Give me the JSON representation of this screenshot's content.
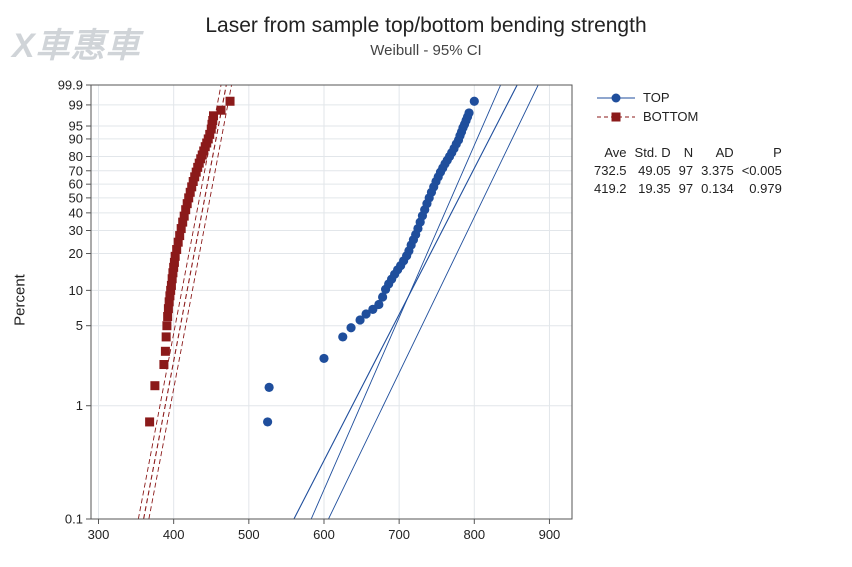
{
  "watermark": "X車惠車",
  "chart_data": {
    "type": "scatter",
    "title": "Laser from sample top/bottom bending strength",
    "subtitle": "Weibull - 95% CI",
    "xlabel": "",
    "ylabel": "Percent",
    "xlim": [
      290,
      930
    ],
    "xticks": [
      300,
      400,
      500,
      600,
      700,
      800,
      900
    ],
    "yticks": [
      0.1,
      1,
      5,
      10,
      20,
      30,
      40,
      50,
      60,
      70,
      80,
      90,
      95,
      99,
      99.9
    ],
    "ytick_labels": [
      "0.1",
      "1",
      "5",
      "10",
      "20",
      "30",
      "40",
      "50",
      "60",
      "70",
      "80",
      "90",
      "95",
      "99",
      "99.9"
    ],
    "grid": true,
    "legend_position": "right",
    "series": [
      {
        "name": "TOP",
        "color": "#1f4e9c",
        "marker": "circle",
        "fit_line": [
          [
            560,
            0.1
          ],
          [
            857,
            99.9
          ]
        ],
        "ci_lower": [
          [
            583,
            0.1
          ],
          [
            835,
            99.9
          ]
        ],
        "ci_upper": [
          [
            606,
            0.1
          ],
          [
            885,
            99.9
          ]
        ],
        "points": [
          [
            525,
            0.72
          ],
          [
            527,
            1.45
          ],
          [
            600,
            2.6
          ],
          [
            625,
            4.0
          ],
          [
            636,
            4.8
          ],
          [
            648,
            5.6
          ],
          [
            656,
            6.3
          ],
          [
            665,
            6.9
          ],
          [
            673,
            7.6
          ],
          [
            678,
            8.8
          ],
          [
            682,
            10.2
          ],
          [
            686,
            11.3
          ],
          [
            690,
            12.4
          ],
          [
            694,
            13.6
          ],
          [
            698,
            14.8
          ],
          [
            702,
            16.0
          ],
          [
            706,
            17.5
          ],
          [
            710,
            19.2
          ],
          [
            713,
            21.0
          ],
          [
            716,
            23.3
          ],
          [
            719,
            25.6
          ],
          [
            722,
            28.0
          ],
          [
            725,
            31.0
          ],
          [
            728,
            34.5
          ],
          [
            731,
            38.2
          ],
          [
            734,
            42.0
          ],
          [
            737,
            46.0
          ],
          [
            740,
            50.0
          ],
          [
            743,
            54.0
          ],
          [
            746,
            58.0
          ],
          [
            749,
            62.0
          ],
          [
            752,
            65.5
          ],
          [
            755,
            69.0
          ],
          [
            758,
            72.0
          ],
          [
            761,
            75.0
          ],
          [
            764,
            77.5
          ],
          [
            767,
            80.0
          ],
          [
            770,
            82.5
          ],
          [
            773,
            85.0
          ],
          [
            776,
            87.5
          ],
          [
            779,
            89.5
          ],
          [
            781,
            91.5
          ],
          [
            783,
            93.0
          ],
          [
            785,
            94.5
          ],
          [
            787,
            95.5
          ],
          [
            789,
            96.5
          ],
          [
            791,
            97.3
          ],
          [
            793,
            98.0
          ],
          [
            800,
            99.3
          ]
        ]
      },
      {
        "name": "BOTTOM",
        "color": "#8b1a1a",
        "marker": "square",
        "fit_line": [
          [
            360,
            0.1
          ],
          [
            470,
            99.9
          ]
        ],
        "ci_lower": [
          [
            353,
            0.1
          ],
          [
            463,
            99.9
          ]
        ],
        "ci_upper": [
          [
            367,
            0.1
          ],
          [
            477,
            99.9
          ]
        ],
        "points": [
          [
            368,
            0.72
          ],
          [
            375,
            1.5
          ],
          [
            387,
            2.3
          ],
          [
            389,
            3.0
          ],
          [
            390,
            4.0
          ],
          [
            391,
            5.0
          ],
          [
            392,
            6.0
          ],
          [
            393,
            7.0
          ],
          [
            394,
            8.0
          ],
          [
            395,
            9.0
          ],
          [
            396,
            10.0
          ],
          [
            397,
            11.0
          ],
          [
            398,
            12.5
          ],
          [
            399,
            14.0
          ],
          [
            400,
            15.5
          ],
          [
            401,
            17.0
          ],
          [
            402,
            19.0
          ],
          [
            404,
            21.5
          ],
          [
            406,
            24.5
          ],
          [
            408,
            27.5
          ],
          [
            410,
            31.0
          ],
          [
            412,
            34.5
          ],
          [
            414,
            38.0
          ],
          [
            416,
            42.0
          ],
          [
            418,
            46.0
          ],
          [
            420,
            50.0
          ],
          [
            422,
            54.0
          ],
          [
            424,
            58.0
          ],
          [
            426,
            62.0
          ],
          [
            428,
            65.5
          ],
          [
            430,
            69.0
          ],
          [
            432,
            72.5
          ],
          [
            434,
            75.5
          ],
          [
            436,
            78.5
          ],
          [
            438,
            81.0
          ],
          [
            440,
            83.5
          ],
          [
            442,
            86.0
          ],
          [
            444,
            88.0
          ],
          [
            446,
            90.0
          ],
          [
            448,
            92.0
          ],
          [
            450,
            94.0
          ],
          [
            451,
            95.5
          ],
          [
            452,
            96.5
          ],
          [
            453,
            97.5
          ],
          [
            463,
            98.4
          ],
          [
            475,
            99.3
          ]
        ]
      }
    ],
    "stats": {
      "headers": [
        "Ave",
        "Std. D",
        "N",
        "AD",
        "P"
      ],
      "rows": [
        [
          "732.5",
          "49.05",
          "97",
          "3.375",
          "<0.005"
        ],
        [
          "419.2",
          "19.35",
          "97",
          "0.134",
          "0.979"
        ]
      ]
    }
  }
}
